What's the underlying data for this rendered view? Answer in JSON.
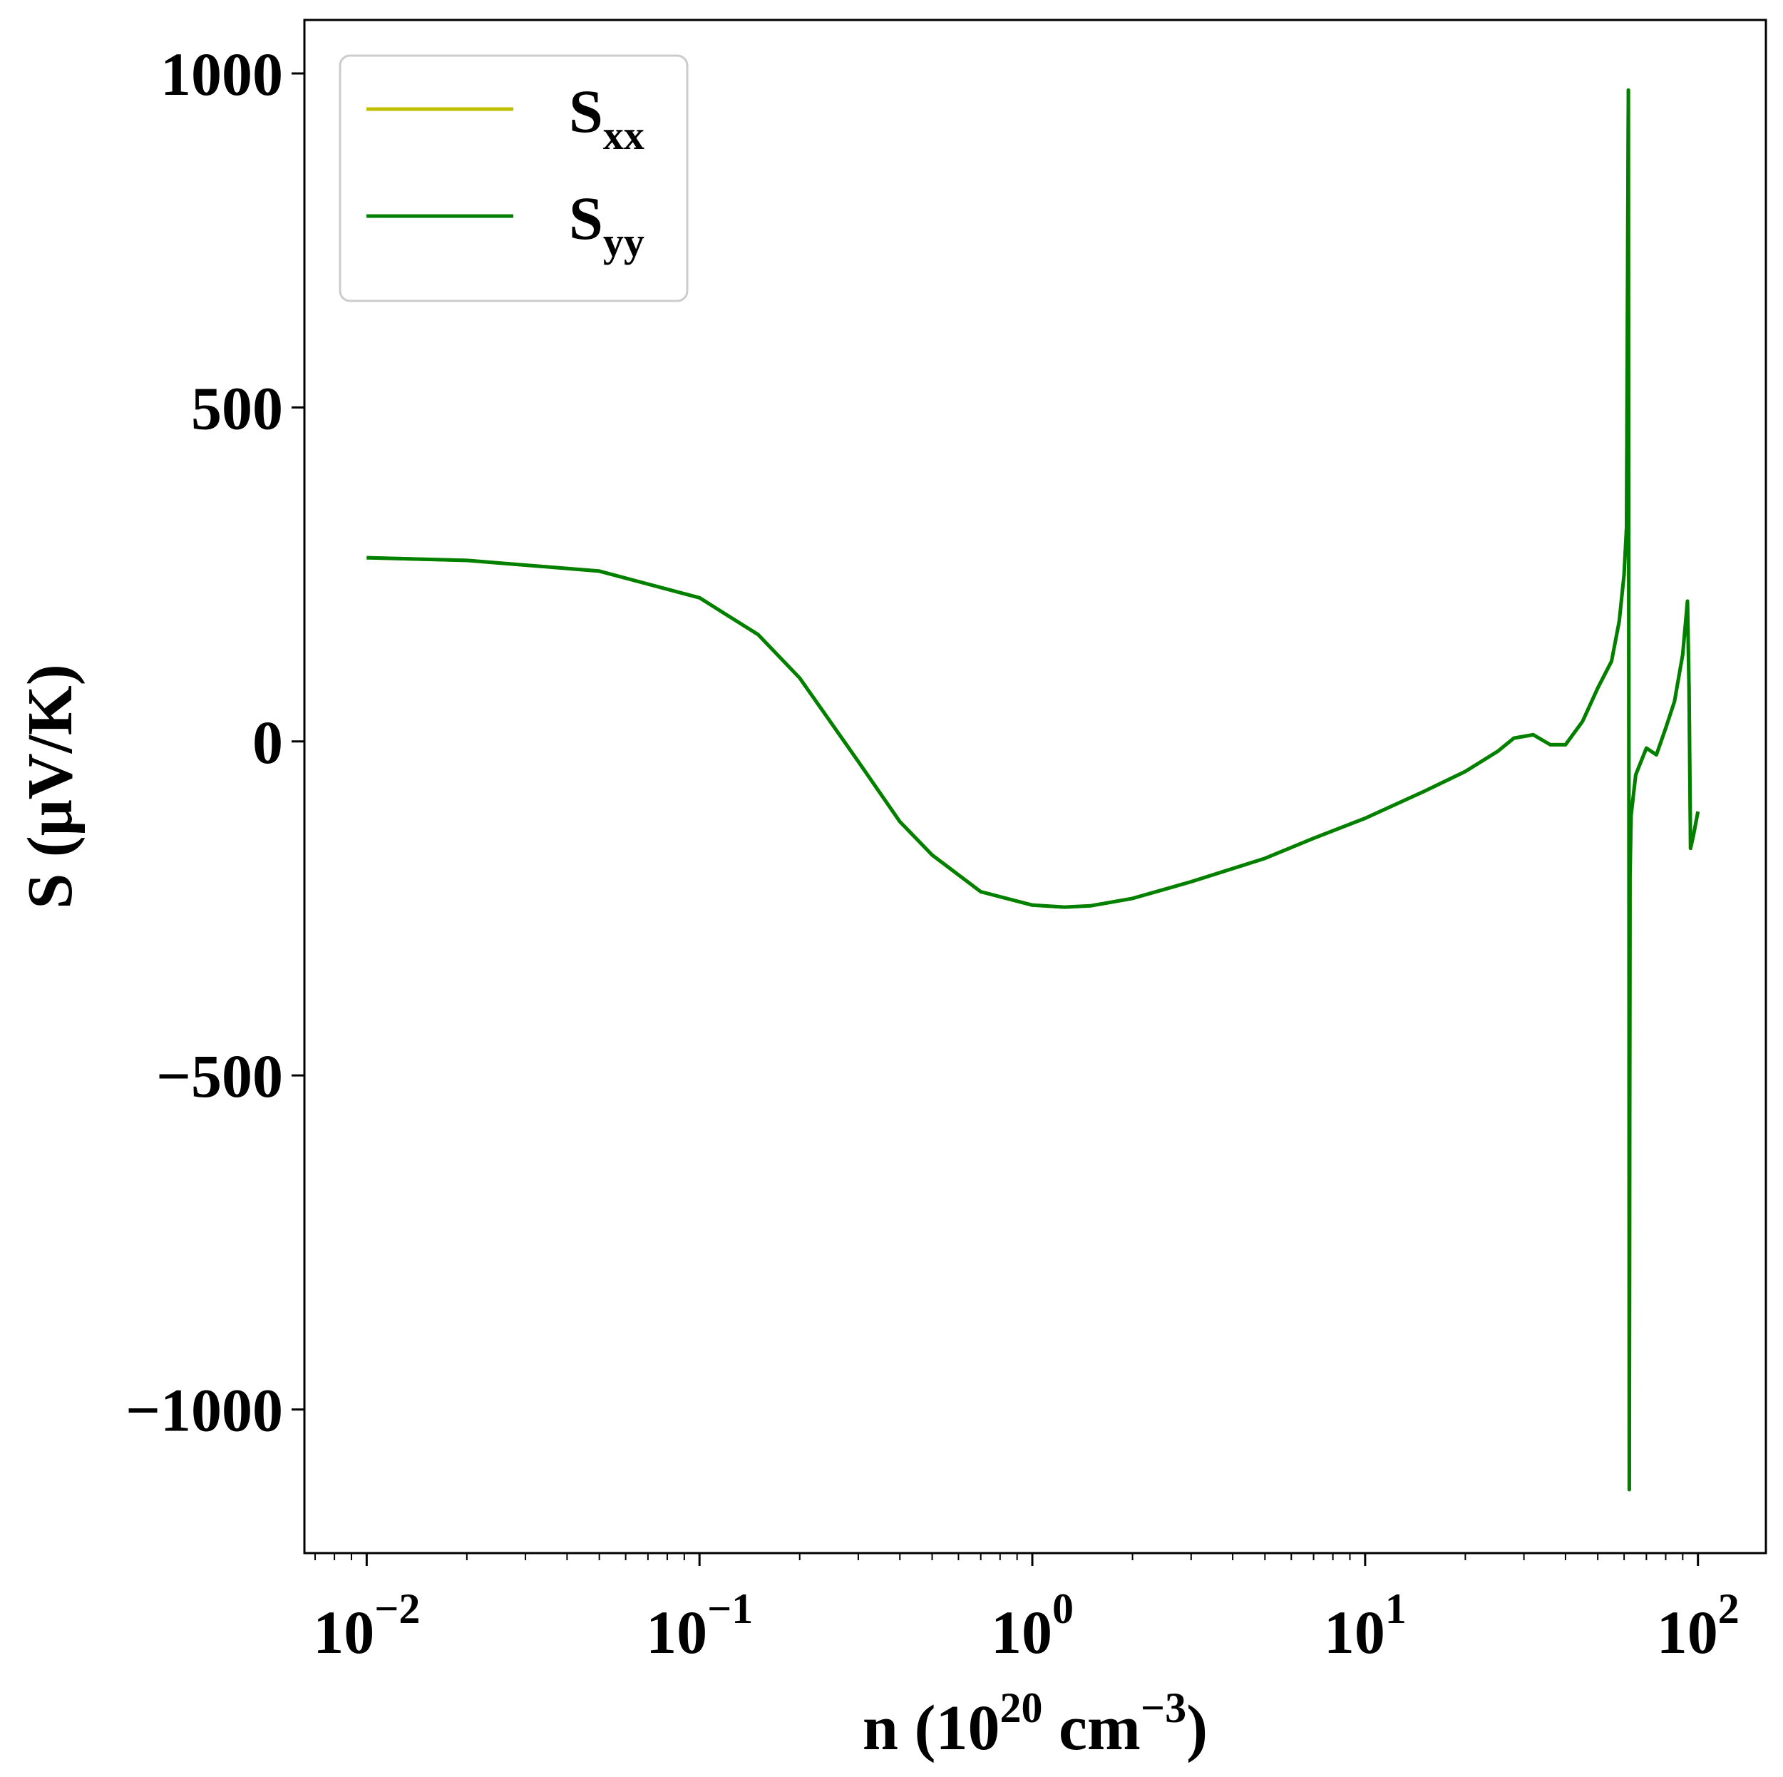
{
  "chart_data": {
    "type": "line",
    "title": "",
    "xlabel": {
      "prefix": "n (10",
      "exp1": "20",
      "middle": " cm",
      "exp2": "−3",
      "suffix": ")"
    },
    "ylabel": "S (μV/K)",
    "xscale": "log",
    "xlim": [
      0.0065,
      160
    ],
    "ylim": [
      -1215,
      1080
    ],
    "grid": false,
    "legend_position": "upper-left",
    "x_ticks": [
      {
        "value": 0.01,
        "base": "10",
        "exp": "−2"
      },
      {
        "value": 0.1,
        "base": "10",
        "exp": "−1"
      },
      {
        "value": 1,
        "base": "10",
        "exp": "0"
      },
      {
        "value": 10,
        "base": "10",
        "exp": "1"
      },
      {
        "value": 100,
        "base": "10",
        "exp": "2"
      }
    ],
    "y_ticks": [
      {
        "value": 1000,
        "label": "1000"
      },
      {
        "value": 500,
        "label": "500"
      },
      {
        "value": 0,
        "label": "0"
      },
      {
        "value": -500,
        "label": "−500"
      },
      {
        "value": -1000,
        "label": "−1000"
      }
    ],
    "series": [
      {
        "name": "S",
        "subscript": "xx",
        "color": "#bfbf00",
        "x": [
          0.01,
          0.02,
          0.05,
          0.1,
          0.15,
          0.2,
          0.3,
          0.4,
          0.5,
          0.7,
          1.0,
          1.25,
          1.5,
          2,
          3,
          5,
          7,
          10,
          15,
          20,
          25,
          28,
          32,
          36,
          40,
          45,
          50,
          55,
          58,
          60,
          61,
          61.8,
          62.0,
          62.2,
          62.5,
          63,
          65,
          70,
          75,
          80,
          85,
          90,
          93,
          94,
          95,
          97,
          100
        ],
        "y": [
          275,
          271,
          255,
          215,
          160,
          95,
          -30,
          -120,
          -170,
          -225,
          -245,
          -248,
          -246,
          -235,
          -210,
          -175,
          -145,
          -115,
          -75,
          -45,
          -15,
          5,
          10,
          -5,
          -5,
          30,
          80,
          120,
          180,
          250,
          320,
          975,
          0,
          -1120,
          -200,
          -110,
          -50,
          -10,
          -20,
          20,
          60,
          130,
          210,
          80,
          -160,
          -140,
          -105
        ]
      },
      {
        "name": "S",
        "subscript": "yy",
        "color": "#008000",
        "x": [
          0.01,
          0.02,
          0.05,
          0.1,
          0.15,
          0.2,
          0.3,
          0.4,
          0.5,
          0.7,
          1.0,
          1.25,
          1.5,
          2,
          3,
          5,
          7,
          10,
          15,
          20,
          25,
          28,
          32,
          36,
          40,
          45,
          50,
          55,
          58,
          60,
          61,
          61.8,
          62.0,
          62.2,
          62.5,
          63,
          65,
          70,
          75,
          80,
          85,
          90,
          93,
          94,
          95,
          97,
          100
        ],
        "y": [
          275,
          271,
          255,
          215,
          160,
          95,
          -30,
          -120,
          -170,
          -225,
          -245,
          -248,
          -246,
          -235,
          -210,
          -175,
          -145,
          -115,
          -75,
          -45,
          -15,
          5,
          10,
          -5,
          -5,
          30,
          80,
          120,
          180,
          250,
          320,
          975,
          0,
          -1120,
          -200,
          -110,
          -50,
          -10,
          -20,
          20,
          60,
          130,
          210,
          80,
          -160,
          -140,
          -105
        ]
      }
    ]
  }
}
